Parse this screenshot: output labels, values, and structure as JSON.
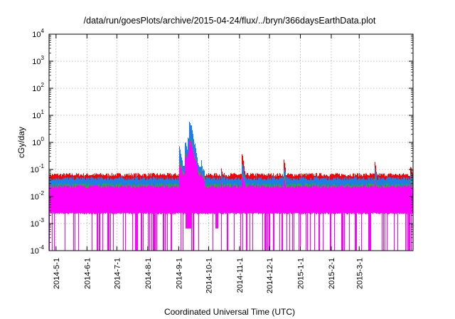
{
  "chart_data": {
    "type": "area",
    "title": "/data/run/goesPlots/archive/2015-04-24/flux/../bryn/366daysEarthData.plot",
    "xlabel": "Coordinated Universal Time (UTC)",
    "ylabel": "cGy/day",
    "yscale": "log",
    "ylim": [
      0.0001,
      10000
    ],
    "xlim": [
      "2014-04-24",
      "2015-04-24"
    ],
    "grid": true,
    "y_ticks": [
      {
        "value": 0.0001,
        "base": "10",
        "exp": "-4"
      },
      {
        "value": 0.001,
        "base": "10",
        "exp": "-3"
      },
      {
        "value": 0.01,
        "base": "10",
        "exp": "-2"
      },
      {
        "value": 0.1,
        "base": "10",
        "exp": "-1"
      },
      {
        "value": 1,
        "base": "10",
        "exp": "0"
      },
      {
        "value": 10,
        "base": "10",
        "exp": "1"
      },
      {
        "value": 100,
        "base": "10",
        "exp": "2"
      },
      {
        "value": 1000,
        "base": "10",
        "exp": "3"
      },
      {
        "value": 10000,
        "base": "10",
        "exp": "4"
      }
    ],
    "x_ticks": [
      "2014-5-1",
      "2014-6-1",
      "2014-7-1",
      "2014-8-1",
      "2014-9-1",
      "2014-10-1",
      "2014-11-1",
      "2014-12-1",
      "2015-1-1",
      "2015-2-1",
      "2015-3-1"
    ],
    "series": [
      {
        "color": "#ff0000",
        "baseline": 0.055,
        "events": [
          {
            "x": "2014-09-02",
            "y": 0.6
          },
          {
            "x": "2014-09-08",
            "y": 0.7
          },
          {
            "x": "2014-09-11",
            "y": 0.65
          },
          {
            "x": "2014-09-12",
            "y": 3.2
          },
          {
            "x": "2014-09-14",
            "y": 1.5
          },
          {
            "x": "2014-09-18",
            "y": 0.3
          },
          {
            "x": "2014-09-24",
            "y": 0.12
          },
          {
            "x": "2014-10-14",
            "y": 0.1
          },
          {
            "x": "2014-11-04",
            "y": 0.3
          },
          {
            "x": "2014-12-16",
            "y": 0.18
          },
          {
            "x": "2015-03-17",
            "y": 0.15
          },
          {
            "x": "2015-04-22",
            "y": 0.11
          }
        ]
      },
      {
        "color": "#1e7ee8",
        "baseline": 0.04
      },
      {
        "color": "#22b522",
        "baseline": 0.023
      },
      {
        "color": "#ff00ff",
        "baseline": 0.02,
        "floor": 0.0022
      }
    ]
  }
}
